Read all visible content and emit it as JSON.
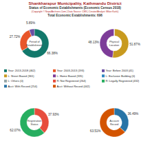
{
  "header": {
    "title": "Shankharapur Municipality, Kathmandu District",
    "subtitle": "Status of Economic Establishments (Economic Census 2018)",
    "copyright": "(Copyright © NepalArchives.Com | Data Source: CBS | Creator/Analyst: Milan Karki)",
    "total": "Total Economic Establishments: 696"
  },
  "chart_data": [
    {
      "type": "pie",
      "title": "Period of Establishment",
      "categories": [
        "Year: 2013-2018 (462)",
        "Year: 2003-2013 (193)",
        "Year: Before 2003 (41)"
      ],
      "values": [
        66.38,
        27.72,
        5.89
      ],
      "value_labels": [
        "66.38%",
        "27.72%",
        "5.89%"
      ],
      "colors": [
        "#12786b",
        "#e8562a",
        "#6b4fa3"
      ],
      "data_labels": true
    },
    {
      "type": "pie",
      "title": "Physical Location",
      "categories": [
        "L: Street Based (361)",
        "L: Home Based (335)",
        "L: Exclusive Building (0)",
        "L: Others (0)"
      ],
      "values": [
        51.87,
        48.13,
        0,
        0
      ],
      "value_labels": [
        "51.87%",
        "48.13%",
        null,
        null
      ],
      "colors": [
        "#c89a1e",
        "#7d3c98",
        "#2e86c1",
        "#95a5a6"
      ],
      "data_labels": true
    },
    {
      "type": "pie",
      "title": "Registration Status",
      "categories": [
        "R: Not Registered (264)",
        "R: Legally Registered (432)"
      ],
      "values": [
        37.93,
        62.07
      ],
      "value_labels": [
        "37.93%",
        "62.07%"
      ],
      "colors": [
        "#e74c3c",
        "#27ae60"
      ],
      "data_labels": true
    },
    {
      "type": "pie",
      "title": "Account Record",
      "categories": [
        "Acct: With Record (254)",
        "Acct: Without Record (442)"
      ],
      "values": [
        36.49,
        63.51
      ],
      "value_labels": [
        "36.49%",
        "63.51%"
      ],
      "colors": [
        "#2874a6",
        "#d35400"
      ],
      "data_labels": true
    }
  ]
}
